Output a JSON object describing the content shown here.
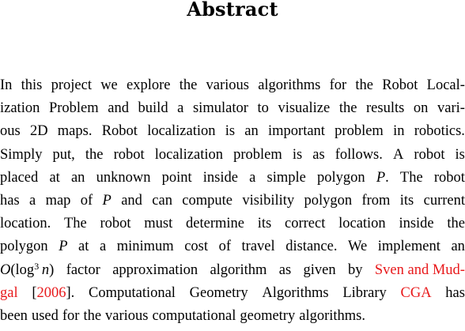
{
  "title": "Abstract",
  "abstract": {
    "lines": [
      [
        "In",
        "this",
        "project",
        "we",
        "explore",
        "the",
        "various",
        "algorithms",
        "for",
        "the",
        "Robot",
        "Local-"
      ],
      [
        "ization",
        "Problem",
        "and",
        "build",
        "a",
        "simulator",
        "to",
        "visualize",
        "the",
        "results",
        "on",
        "vari-"
      ],
      [
        "ous",
        "2D",
        "maps.",
        "Robot",
        "localization",
        "is",
        "an",
        "important",
        "problem",
        "in",
        "robotics."
      ],
      [
        "Simply",
        "put,",
        "the",
        "robot",
        "localization",
        "problem",
        "is",
        "as",
        "follows.",
        "A",
        "robot",
        "is"
      ],
      [
        "placed",
        "at",
        "an",
        "unknown",
        "point",
        "inside",
        "a",
        "simple",
        "polygon",
        "P.",
        "The",
        "robot"
      ],
      [
        "has",
        "a",
        "map",
        "of",
        "P",
        "and",
        "can",
        "compute",
        "visibility",
        "polygon",
        "from",
        "its",
        "current"
      ],
      [
        "location.",
        "The",
        "robot",
        "must",
        "determine",
        "its",
        "correct",
        "location",
        "inside",
        "the"
      ],
      [
        "polygon",
        "P",
        "at",
        "a",
        "minimum",
        "cost",
        "of",
        "travel",
        "distance.",
        "We",
        "implement",
        "an"
      ],
      [
        "O(log3 n)",
        "factor",
        "approximation",
        "algorithm",
        "as",
        "given",
        "by",
        "Sven and Mud-"
      ],
      [
        "gal",
        "[2006].",
        "Computational",
        "Geometry",
        "Algorithms",
        "Library",
        "CGA",
        "has"
      ],
      [
        "been",
        "used",
        "for",
        "the",
        "various",
        "computational",
        "geometry",
        "algorithms."
      ]
    ],
    "citation_author_part1": "Sven and Mud-",
    "citation_author_part2": "gal",
    "citation_year": "2006",
    "library_link": "CGA"
  },
  "colors": {
    "link": "#e8191b",
    "text": "#000000",
    "background": "#ffffff"
  }
}
